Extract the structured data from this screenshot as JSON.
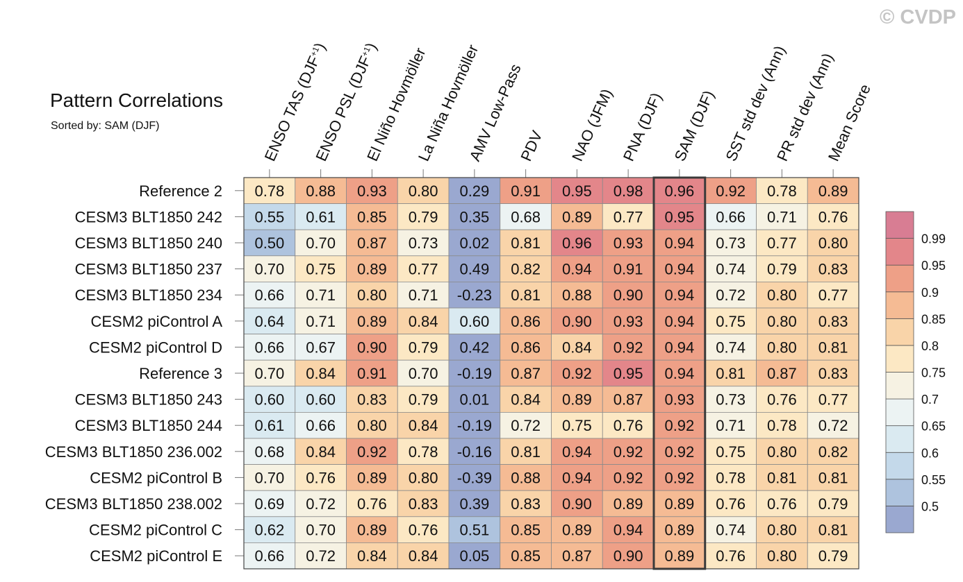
{
  "watermark": "© CVDP",
  "chart_data": {
    "type": "heatmap",
    "title": "Pattern Correlations",
    "subtitle": "Sorted by: SAM (DJF)",
    "columns": [
      "ENSO TAS (DJF+1)",
      "ENSO PSL (DJF+1)",
      "El Niño Hovmöller",
      "La Niña Hovmöller",
      "AMV Low-Pass",
      "PDV",
      "NAO (JFM)",
      "PNA (DJF)",
      "SAM (DJF)",
      "SST std dev (Ann)",
      "PR std dev (Ann)",
      "Mean Score"
    ],
    "sorted_by": "SAM (DJF)",
    "rows": [
      {
        "name": "Reference 2",
        "values": [
          "0.78",
          "0.88",
          "0.93",
          "0.80",
          "0.29",
          "0.91",
          "0.95",
          "0.98",
          "0.96",
          "0.92",
          "0.78",
          "0.89"
        ]
      },
      {
        "name": "CESM3 BLT1850 242",
        "values": [
          "0.55",
          "0.61",
          "0.85",
          "0.79",
          "0.35",
          "0.68",
          "0.89",
          "0.77",
          "0.95",
          "0.66",
          "0.71",
          "0.76"
        ]
      },
      {
        "name": "CESM3 BLT1850 240",
        "values": [
          "0.50",
          "0.70",
          "0.87",
          "0.73",
          "0.02",
          "0.81",
          "0.96",
          "0.93",
          "0.94",
          "0.73",
          "0.77",
          "0.80"
        ]
      },
      {
        "name": "CESM3 BLT1850 237",
        "values": [
          "0.70",
          "0.75",
          "0.89",
          "0.77",
          "0.49",
          "0.82",
          "0.94",
          "0.91",
          "0.94",
          "0.74",
          "0.79",
          "0.83"
        ]
      },
      {
        "name": "CESM3 BLT1850 234",
        "values": [
          "0.66",
          "0.71",
          "0.80",
          "0.71",
          "-0.23",
          "0.81",
          "0.88",
          "0.90",
          "0.94",
          "0.72",
          "0.80",
          "0.77"
        ]
      },
      {
        "name": "CESM2 piControl A",
        "values": [
          "0.64",
          "0.71",
          "0.89",
          "0.84",
          "0.60",
          "0.86",
          "0.90",
          "0.93",
          "0.94",
          "0.75",
          "0.80",
          "0.83"
        ]
      },
      {
        "name": "CESM2 piControl D",
        "values": [
          "0.66",
          "0.67",
          "0.90",
          "0.79",
          "0.42",
          "0.86",
          "0.84",
          "0.92",
          "0.94",
          "0.74",
          "0.80",
          "0.81"
        ]
      },
      {
        "name": "Reference 3",
        "values": [
          "0.70",
          "0.84",
          "0.91",
          "0.70",
          "-0.19",
          "0.87",
          "0.92",
          "0.95",
          "0.94",
          "0.81",
          "0.87",
          "0.83"
        ]
      },
      {
        "name": "CESM3 BLT1850 243",
        "values": [
          "0.60",
          "0.60",
          "0.83",
          "0.79",
          "0.01",
          "0.84",
          "0.89",
          "0.87",
          "0.93",
          "0.73",
          "0.76",
          "0.77"
        ]
      },
      {
        "name": "CESM3 BLT1850 244",
        "values": [
          "0.61",
          "0.66",
          "0.80",
          "0.84",
          "-0.19",
          "0.72",
          "0.75",
          "0.76",
          "0.92",
          "0.71",
          "0.78",
          "0.72"
        ]
      },
      {
        "name": "CESM3 BLT1850 236.002",
        "values": [
          "0.68",
          "0.84",
          "0.92",
          "0.78",
          "-0.16",
          "0.81",
          "0.94",
          "0.92",
          "0.92",
          "0.75",
          "0.80",
          "0.82"
        ]
      },
      {
        "name": "CESM2 piControl B",
        "values": [
          "0.70",
          "0.76",
          "0.89",
          "0.80",
          "-0.39",
          "0.88",
          "0.94",
          "0.92",
          "0.92",
          "0.78",
          "0.81",
          "0.81"
        ]
      },
      {
        "name": "CESM3 BLT1850 238.002",
        "values": [
          "0.69",
          "0.72",
          "0.76",
          "0.83",
          "0.39",
          "0.83",
          "0.90",
          "0.89",
          "0.89",
          "0.76",
          "0.76",
          "0.79"
        ]
      },
      {
        "name": "CESM2 piControl C",
        "values": [
          "0.62",
          "0.70",
          "0.89",
          "0.76",
          "0.51",
          "0.85",
          "0.89",
          "0.94",
          "0.89",
          "0.74",
          "0.80",
          "0.81"
        ]
      },
      {
        "name": "CESM2 piControl E",
        "values": [
          "0.66",
          "0.72",
          "0.84",
          "0.84",
          "0.05",
          "0.85",
          "0.87",
          "0.90",
          "0.89",
          "0.76",
          "0.80",
          "0.79"
        ]
      }
    ],
    "colorbar": {
      "levels": [
        "0.5",
        "0.55",
        "0.6",
        "0.65",
        "0.7",
        "0.75",
        "0.8",
        "0.85",
        "0.9",
        "0.95",
        "0.99"
      ],
      "colors": [
        "#9aa8d0",
        "#aec3de",
        "#c4d9ea",
        "#daeaf1",
        "#ecf3f3",
        "#f6f2e3",
        "#fce8c4",
        "#f9d4a9",
        "#f5bb94",
        "#eea087",
        "#e3868a",
        "#d87d93"
      ]
    }
  }
}
